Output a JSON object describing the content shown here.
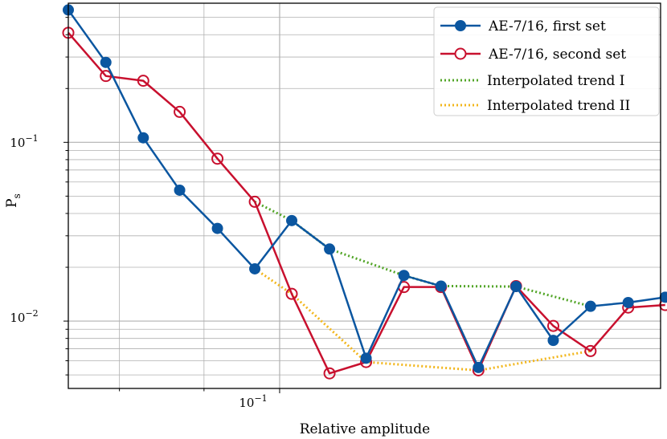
{
  "chart_data": {
    "type": "line",
    "xlabel": "Relative amplitude",
    "ylabel": "P",
    "ylabel_subscript": "s",
    "xscale": "log",
    "yscale": "log",
    "xlim": [
      0.0745,
      0.17
    ],
    "ylim": [
      0.0042,
      0.6
    ],
    "x_tick_major_label": "10",
    "x_tick_major_exp": "−1",
    "y_tick_labels": [
      {
        "base": "10",
        "exp": "−1",
        "value": 0.1
      },
      {
        "base": "10",
        "exp": "−2",
        "value": 0.01
      }
    ],
    "grid": true,
    "legend_position": "top-right",
    "series": [
      {
        "name": "AE-7/16, first set",
        "color": "#0b56a0",
        "style": "solid",
        "marker": "filled-circle",
        "x": [
          0.0745,
          0.0785,
          0.0827,
          0.087,
          0.0917,
          0.0966,
          0.1017,
          0.1072,
          0.1128,
          0.1189,
          0.1252,
          0.1319,
          0.139,
          0.1464,
          0.1542,
          0.1625,
          0.1711
        ],
        "y": [
          0.55,
          0.28,
          0.106,
          0.054,
          0.033,
          0.0196,
          0.0365,
          0.0253,
          0.0062,
          0.018,
          0.0157,
          0.0055,
          0.0156,
          0.0078,
          0.0121,
          0.0127,
          0.0136
        ]
      },
      {
        "name": "AE-7/16, second set",
        "color": "#c8102e",
        "style": "solid",
        "marker": "open-circle",
        "x": [
          0.0745,
          0.0785,
          0.0827,
          0.087,
          0.0917,
          0.0966,
          0.1017,
          0.1072,
          0.1128,
          0.1189,
          0.1252,
          0.1319,
          0.139,
          0.1464,
          0.1542,
          0.1625,
          0.1711
        ],
        "y": [
          0.41,
          0.235,
          0.221,
          0.148,
          0.081,
          0.0465,
          0.0142,
          0.0051,
          0.0059,
          0.0155,
          0.0155,
          0.0053,
          0.0157,
          0.0094,
          0.0068,
          0.0119,
          0.0123
        ]
      },
      {
        "name": "Interpolated trend I",
        "color": "#52a527",
        "style": "dotted",
        "marker": "none",
        "x": [
          0.0966,
          0.1017,
          0.1072,
          0.1189,
          0.1252,
          0.139,
          0.1542
        ],
        "y": [
          0.0465,
          0.0365,
          0.0253,
          0.018,
          0.0157,
          0.0156,
          0.0121
        ]
      },
      {
        "name": "Interpolated trend II",
        "color": "#f2b61c",
        "style": "dotted",
        "marker": "none",
        "x": [
          0.0966,
          0.1017,
          0.1128,
          0.1319,
          0.1542
        ],
        "y": [
          0.0196,
          0.0142,
          0.0059,
          0.0053,
          0.0068
        ]
      }
    ]
  }
}
